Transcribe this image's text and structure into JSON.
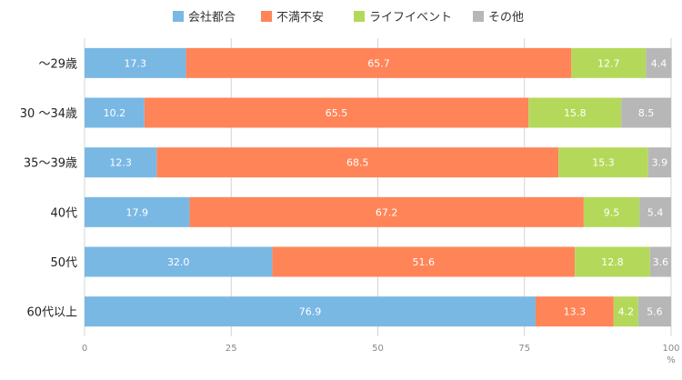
{
  "chart_data": {
    "type": "bar",
    "orientation": "horizontal",
    "stacked": true,
    "categories": [
      "〜29歳",
      "30 〜34歳",
      "35〜39歳",
      "40代",
      "50代",
      "60代以上"
    ],
    "series": [
      {
        "name": "会社都合",
        "color": "#7ab8e4",
        "values": [
          17.3,
          10.2,
          12.3,
          17.9,
          32.0,
          76.9
        ]
      },
      {
        "name": "不満不安",
        "color": "#ff8458",
        "values": [
          65.7,
          65.5,
          68.5,
          67.2,
          51.6,
          13.3
        ]
      },
      {
        "name": "ライフイベント",
        "color": "#b4d95a",
        "values": [
          12.7,
          15.8,
          15.3,
          9.5,
          12.8,
          4.2
        ]
      },
      {
        "name": "その他",
        "color": "#b7b7b7",
        "values": [
          4.4,
          8.5,
          3.9,
          5.4,
          3.6,
          5.6
        ]
      }
    ],
    "data_labels": [
      [
        "17.3",
        "10.2",
        "12.3",
        "17.9",
        "32.0",
        "76.9"
      ],
      [
        "65.7",
        "65.5",
        "68.5",
        "67.2",
        "51.6",
        "13.3"
      ],
      [
        "12.7",
        "15.8",
        "15.3",
        "9.5",
        "12.8",
        "4.2"
      ],
      [
        "4.4",
        "8.5",
        "3.9",
        "5.4",
        "3.6",
        "5.6"
      ]
    ],
    "xlim": [
      0,
      100
    ],
    "xticks": [
      "0",
      "25",
      "50",
      "75",
      "100"
    ],
    "x_unit": "%",
    "grid": true,
    "legend_position": "top-center"
  }
}
